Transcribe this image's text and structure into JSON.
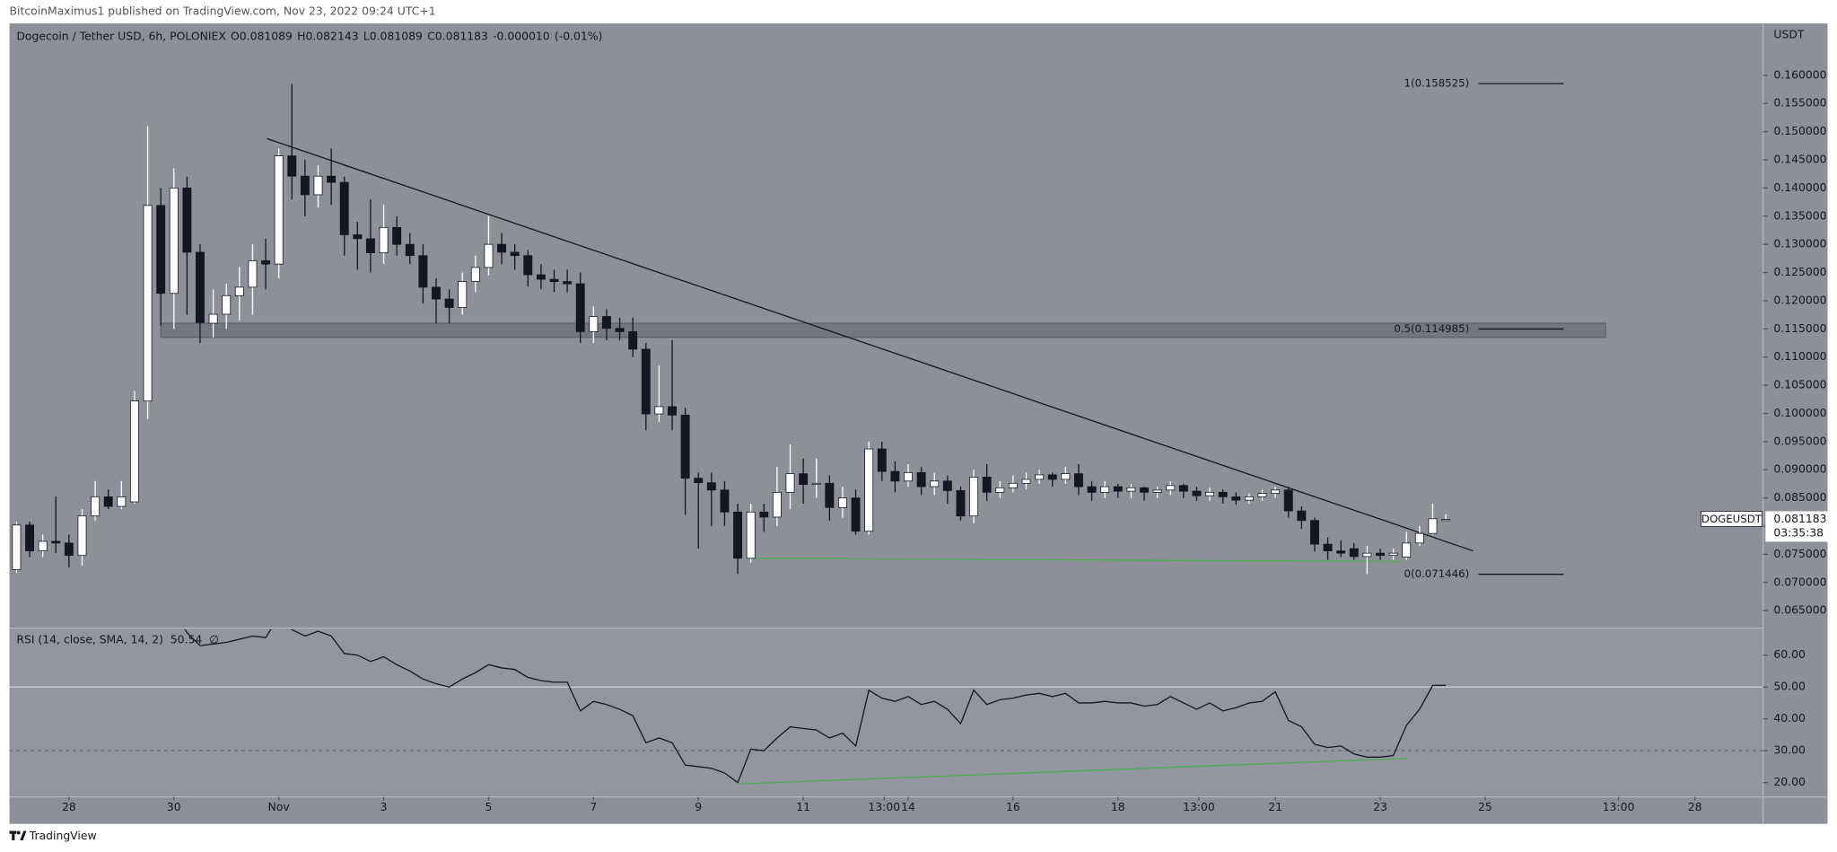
{
  "page": {
    "publisher_line": "BitcoinMaximus1 published on TradingView.com, Nov 23, 2022 09:24 UTC+1",
    "footer_brand": "TradingView"
  },
  "chart_data": [
    {
      "type": "candlestick",
      "title": "Dogecoin / Tether USD, 6h, POLONIEX",
      "ohlc_labels": [
        "O",
        "H",
        "L",
        "C"
      ],
      "change": "-0.000010",
      "change_pct": "(-0.01%)",
      "y_unit": "USDT",
      "symbol_tag": "DOGEUSDT",
      "countdown": "03:35:38",
      "up_color": "#ffffff",
      "down_color": "#131722",
      "grid": false,
      "x": [
        0,
        1,
        2,
        3,
        4,
        5,
        6,
        7,
        8,
        9,
        10,
        11,
        12,
        13,
        14,
        15,
        16,
        17,
        18,
        19,
        20,
        21,
        22,
        23,
        24,
        25,
        26,
        27,
        28,
        29,
        30,
        31,
        32,
        33,
        34,
        35,
        36,
        37,
        38,
        39,
        40,
        41,
        42,
        43,
        44,
        45,
        46,
        47,
        48,
        49,
        50,
        51,
        52,
        53,
        54,
        55,
        56,
        57,
        58,
        59,
        60,
        61,
        62,
        63,
        64,
        65,
        66,
        67,
        68,
        69,
        70,
        71,
        72,
        73,
        74,
        75,
        76,
        77,
        78,
        79,
        80,
        81,
        82,
        83,
        84,
        85,
        86,
        87,
        88,
        89,
        90,
        91,
        92,
        93,
        94,
        95,
        96,
        97,
        98,
        99,
        100,
        101,
        102,
        103,
        104,
        105,
        106,
        107,
        108,
        109
      ],
      "open": [
        0.0723,
        0.0802,
        0.0756,
        0.0773,
        0.077,
        0.0748,
        0.0818,
        0.0852,
        0.0835,
        0.0843,
        0.1022,
        0.1369,
        0.1213,
        0.14,
        0.1286,
        0.116,
        0.1176,
        0.1209,
        0.1224,
        0.1271,
        0.1265,
        0.1457,
        0.1421,
        0.1388,
        0.1421,
        0.141,
        0.1317,
        0.131,
        0.1285,
        0.133,
        0.13,
        0.128,
        0.1224,
        0.1203,
        0.1188,
        0.1234,
        0.1259,
        0.13,
        0.1286,
        0.128,
        0.1246,
        0.1238,
        0.1234,
        0.123,
        0.1145,
        0.1172,
        0.1151,
        0.1145,
        0.1114,
        0.0999,
        0.1012,
        0.0997,
        0.0885,
        0.0877,
        0.0864,
        0.0825,
        0.0743,
        0.0825,
        0.0816,
        0.086,
        0.0893,
        0.0874,
        0.0876,
        0.0833,
        0.085,
        0.0791,
        0.0937,
        0.0897,
        0.088,
        0.0895,
        0.087,
        0.088,
        0.0863,
        0.0818,
        0.0887,
        0.086,
        0.0868,
        0.0876,
        0.0883,
        0.0891,
        0.0883,
        0.0893,
        0.087,
        0.086,
        0.087,
        0.0862,
        0.0868,
        0.086,
        0.0864,
        0.0872,
        0.0862,
        0.0854,
        0.086,
        0.0852,
        0.0846,
        0.0852,
        0.0858,
        0.0864,
        0.0827,
        0.081,
        0.0768,
        0.0756,
        0.076,
        0.0746,
        0.0752,
        0.0748,
        0.0745,
        0.077,
        0.0787,
        0.081089
      ],
      "high": [
        0.0808,
        0.0808,
        0.0785,
        0.0853,
        0.0785,
        0.083,
        0.088,
        0.0865,
        0.088,
        0.104,
        0.151,
        0.14,
        0.1435,
        0.142,
        0.13,
        0.122,
        0.123,
        0.126,
        0.13,
        0.131,
        0.147,
        0.1585,
        0.145,
        0.144,
        0.147,
        0.142,
        0.134,
        0.138,
        0.137,
        0.135,
        0.132,
        0.13,
        0.124,
        0.122,
        0.125,
        0.128,
        0.135,
        0.132,
        0.13,
        0.129,
        0.1265,
        0.1255,
        0.1255,
        0.125,
        0.119,
        0.1185,
        0.117,
        0.117,
        0.1125,
        0.1085,
        0.113,
        0.101,
        0.0895,
        0.0895,
        0.088,
        0.084,
        0.084,
        0.084,
        0.0905,
        0.0945,
        0.092,
        0.092,
        0.089,
        0.087,
        0.0865,
        0.095,
        0.095,
        0.0915,
        0.091,
        0.0905,
        0.0895,
        0.089,
        0.087,
        0.09,
        0.091,
        0.088,
        0.089,
        0.0895,
        0.09,
        0.0895,
        0.0905,
        0.091,
        0.088,
        0.088,
        0.0875,
        0.0875,
        0.087,
        0.087,
        0.088,
        0.0875,
        0.087,
        0.0868,
        0.0865,
        0.086,
        0.0858,
        0.0865,
        0.087,
        0.087,
        0.0835,
        0.0815,
        0.078,
        0.0775,
        0.077,
        0.0765,
        0.076,
        0.076,
        0.079,
        0.08,
        0.084,
        0.082143
      ],
      "low": [
        0.0717,
        0.0745,
        0.0745,
        0.0752,
        0.0727,
        0.073,
        0.081,
        0.083,
        0.083,
        0.084,
        0.099,
        0.1155,
        0.115,
        0.1175,
        0.1125,
        0.1135,
        0.115,
        0.1165,
        0.1175,
        0.122,
        0.124,
        0.138,
        0.135,
        0.1365,
        0.137,
        0.128,
        0.1255,
        0.125,
        0.1265,
        0.128,
        0.1265,
        0.1195,
        0.116,
        0.116,
        0.1175,
        0.1215,
        0.1245,
        0.1265,
        0.1255,
        0.1225,
        0.122,
        0.1215,
        0.1215,
        0.1125,
        0.1125,
        0.113,
        0.113,
        0.11,
        0.097,
        0.0985,
        0.097,
        0.082,
        0.076,
        0.08,
        0.08,
        0.0715,
        0.0735,
        0.079,
        0.08,
        0.083,
        0.084,
        0.085,
        0.081,
        0.0815,
        0.0785,
        0.0785,
        0.088,
        0.086,
        0.087,
        0.0855,
        0.0855,
        0.084,
        0.081,
        0.0805,
        0.0845,
        0.085,
        0.086,
        0.0865,
        0.0875,
        0.087,
        0.0875,
        0.0855,
        0.0845,
        0.085,
        0.085,
        0.085,
        0.0845,
        0.085,
        0.0855,
        0.085,
        0.0845,
        0.0845,
        0.084,
        0.0838,
        0.084,
        0.0845,
        0.085,
        0.0815,
        0.0795,
        0.0755,
        0.074,
        0.0745,
        0.074,
        0.0715,
        0.074,
        0.074,
        0.074,
        0.0765,
        0.0785,
        0.081089
      ],
      "close": [
        0.0802,
        0.0756,
        0.0773,
        0.077,
        0.0748,
        0.0818,
        0.0852,
        0.0835,
        0.0852,
        0.1022,
        0.1369,
        0.1213,
        0.14,
        0.1286,
        0.1161,
        0.1176,
        0.1209,
        0.1224,
        0.1271,
        0.1265,
        0.1457,
        0.1421,
        0.1388,
        0.1421,
        0.141,
        0.1317,
        0.131,
        0.1285,
        0.133,
        0.13,
        0.128,
        0.1224,
        0.1203,
        0.1188,
        0.1234,
        0.1259,
        0.13,
        0.1286,
        0.128,
        0.1246,
        0.1238,
        0.1234,
        0.123,
        0.1145,
        0.1172,
        0.1151,
        0.1145,
        0.1114,
        0.0999,
        0.1012,
        0.0997,
        0.0885,
        0.0877,
        0.0864,
        0.0825,
        0.0743,
        0.0825,
        0.0816,
        0.086,
        0.0893,
        0.0874,
        0.0876,
        0.0833,
        0.085,
        0.0791,
        0.0937,
        0.0897,
        0.088,
        0.0895,
        0.087,
        0.088,
        0.0863,
        0.0818,
        0.0887,
        0.086,
        0.0868,
        0.0876,
        0.0883,
        0.0891,
        0.0883,
        0.0893,
        0.087,
        0.086,
        0.087,
        0.0862,
        0.0868,
        0.086,
        0.0864,
        0.0872,
        0.0862,
        0.0854,
        0.086,
        0.0852,
        0.0846,
        0.0852,
        0.0858,
        0.0864,
        0.0827,
        0.081,
        0.0768,
        0.0756,
        0.0752,
        0.0746,
        0.0752,
        0.0748,
        0.0752,
        0.077,
        0.0787,
        0.0813,
        0.081183
      ],
      "xlim": [
        -0.54,
        133.2
      ],
      "xticks": [
        {
          "value": 4,
          "label": "28"
        },
        {
          "value": 12,
          "label": "30"
        },
        {
          "value": 20,
          "label": "Nov"
        },
        {
          "value": 28,
          "label": "3"
        },
        {
          "value": 36,
          "label": "5"
        },
        {
          "value": 44,
          "label": "7"
        },
        {
          "value": 52,
          "label": "9"
        },
        {
          "value": 60,
          "label": "11"
        },
        {
          "value": 66.17,
          "label": "13:00"
        },
        {
          "value": 68,
          "label": "14"
        },
        {
          "value": 76,
          "label": "16"
        },
        {
          "value": 84,
          "label": "18"
        },
        {
          "value": 90.17,
          "label": "13:00"
        },
        {
          "value": 96,
          "label": "21"
        },
        {
          "value": 104,
          "label": "23"
        },
        {
          "value": 112,
          "label": "25"
        },
        {
          "value": 122.17,
          "label": "13:00"
        },
        {
          "value": 128,
          "label": "28"
        }
      ],
      "ylim": [
        0.0621,
        0.1692
      ],
      "yticks": [
        {
          "value": 0.065,
          "label": "0.065000"
        },
        {
          "value": 0.07,
          "label": "0.070000"
        },
        {
          "value": 0.075,
          "label": "0.075000"
        },
        {
          "value": 0.08,
          "label": "0.080000"
        },
        {
          "value": 0.085,
          "label": "0.085000"
        },
        {
          "value": 0.09,
          "label": "0.090000"
        },
        {
          "value": 0.095,
          "label": "0.095000"
        },
        {
          "value": 0.1,
          "label": "0.100000"
        },
        {
          "value": 0.105,
          "label": "0.105000"
        },
        {
          "value": 0.11,
          "label": "0.110000"
        },
        {
          "value": 0.115,
          "label": "0.115000"
        },
        {
          "value": 0.12,
          "label": "0.120000"
        },
        {
          "value": 0.125,
          "label": "0.125000"
        },
        {
          "value": 0.13,
          "label": "0.130000"
        },
        {
          "value": 0.135,
          "label": "0.135000"
        },
        {
          "value": 0.14,
          "label": "0.140000"
        },
        {
          "value": 0.145,
          "label": "0.145000"
        },
        {
          "value": 0.15,
          "label": "0.150000"
        },
        {
          "value": 0.155,
          "label": "0.155000"
        },
        {
          "value": 0.16,
          "label": "0.160000"
        }
      ],
      "fib_levels": [
        {
          "label": "1(0.158525)",
          "value": 0.158525
        },
        {
          "label": "0.5(0.114985)",
          "value": 0.114985
        },
        {
          "label": "0(0.071446)",
          "value": 0.071446
        }
      ],
      "fib_x": [
        111.5,
        118
      ],
      "zone": {
        "x": [
          11,
          121.2
        ],
        "y": [
          0.1135,
          0.116
        ],
        "color": "#6b6f77"
      },
      "trendlines": [
        {
          "x": [
            19.1,
            111.1
          ],
          "y": [
            0.14877,
            0.07559
          ],
          "color": "#131722"
        },
        {
          "x": [
            56.1,
            105.7
          ],
          "y": [
            0.0743,
            0.0737
          ],
          "color": "#4caf50"
        }
      ]
    },
    {
      "type": "line",
      "title": "RSI (14, close, SMA, 14, 2)",
      "sma_value": "∅",
      "color": "#131722",
      "values": [
        null,
        null,
        null,
        null,
        null,
        null,
        null,
        null,
        null,
        null,
        80,
        70,
        74,
        67,
        63,
        63.5,
        64,
        65,
        66,
        65.5,
        72,
        68,
        66,
        67.5,
        66,
        60.5,
        60,
        58,
        59.5,
        57,
        55,
        52.5,
        51,
        50,
        52.5,
        54.5,
        57,
        56,
        55.5,
        53,
        52,
        51.5,
        51.5,
        42.5,
        45.5,
        44.5,
        43,
        41,
        32.5,
        34,
        32.5,
        25.5,
        25,
        24.5,
        23,
        20,
        30.5,
        30,
        34,
        37.5,
        37,
        36.5,
        34,
        35.5,
        31.5,
        49,
        46.5,
        45.5,
        47,
        44.5,
        45.5,
        43,
        38.5,
        49,
        44.5,
        46,
        46.5,
        47.5,
        48,
        47,
        48,
        45,
        45,
        45.5,
        45,
        45,
        44,
        44.5,
        47,
        45,
        43,
        45,
        42.5,
        43.5,
        45,
        45.5,
        48.5,
        39.5,
        37.5,
        32,
        31,
        31.5,
        29,
        28,
        28,
        28.5,
        38,
        43,
        50.5,
        50.54
      ],
      "levels": [
        50,
        30
      ],
      "ylim": [
        15.5,
        68.1
      ],
      "yticks": [
        {
          "value": 20,
          "label": "20.00"
        },
        {
          "value": 30,
          "label": "30.00"
        },
        {
          "value": 40,
          "label": "40.00"
        },
        {
          "value": 50,
          "label": "50.00"
        },
        {
          "value": 60,
          "label": "60.00"
        }
      ],
      "trendlines": [
        {
          "x": [
            55.2,
            106
          ],
          "y": [
            19.6,
            27.6
          ],
          "color": "#4caf50"
        }
      ]
    }
  ]
}
